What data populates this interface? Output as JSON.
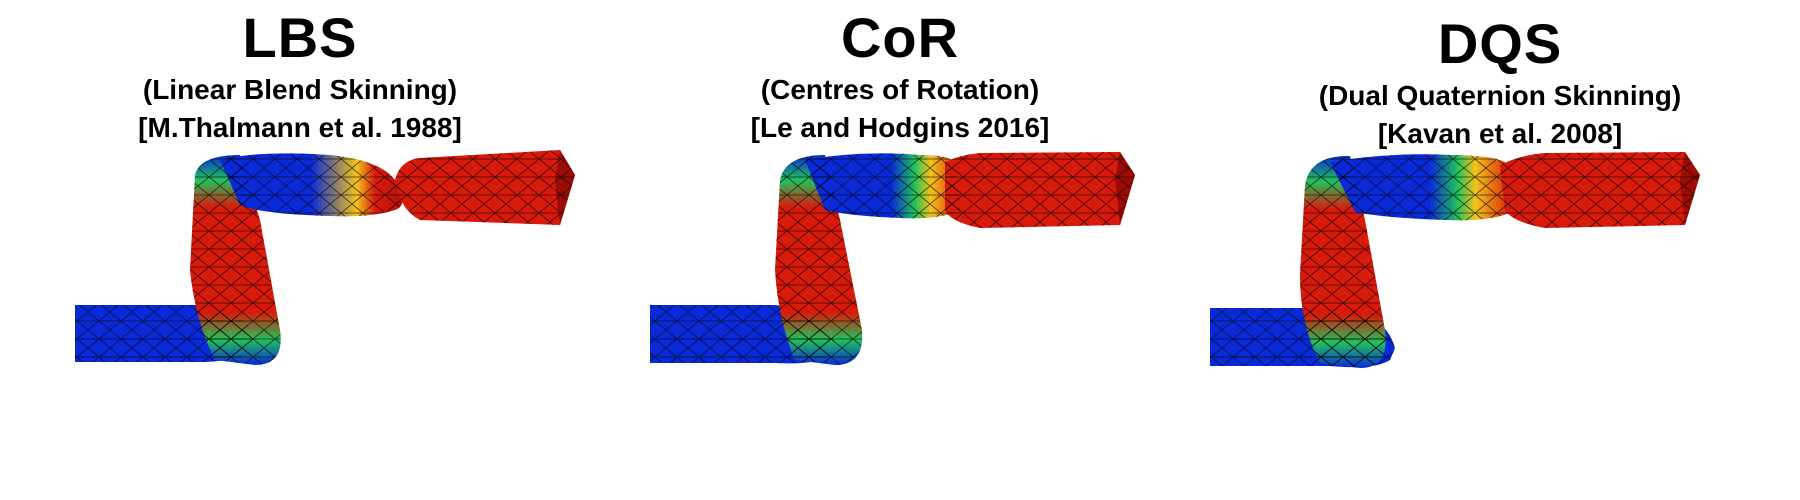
{
  "panels": [
    {
      "title": "LBS",
      "subtitle": "(Linear Blend Skinning)",
      "reference": "[M.Thalmann et al. 1988]"
    },
    {
      "title": "CoR",
      "subtitle": "(Centres of Rotation)",
      "reference": "[Le and Hodgins 2016]"
    },
    {
      "title": "DQS",
      "subtitle": "(Dual Quaternion Skinning)",
      "reference": "[Kavan et al. 2008]"
    }
  ],
  "colors": {
    "low": "#0a2ad8",
    "mid": "#21c25a",
    "high": "#d81a0c",
    "mesh": "#000000"
  }
}
